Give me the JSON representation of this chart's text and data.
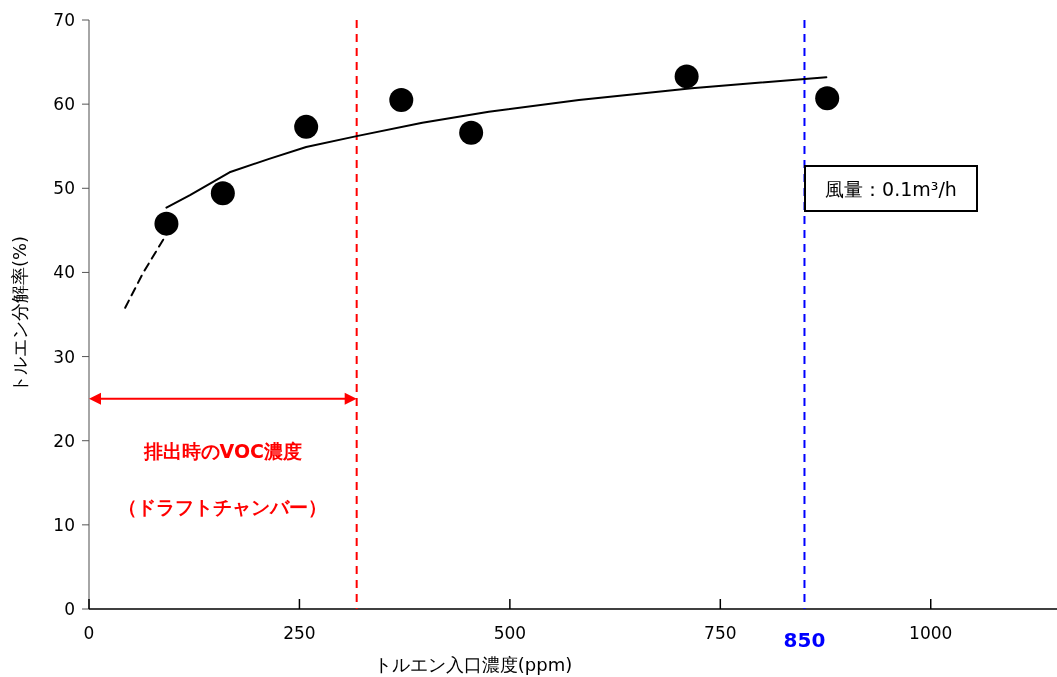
{
  "chart_data": {
    "type": "scatter",
    "xlabel": "トルエン入口濃度(ppm)",
    "ylabel": "トルエン分解率(%)",
    "xlim": [
      0,
      1150
    ],
    "ylim": [
      0,
      70
    ],
    "xticks": [
      0,
      250,
      500,
      750,
      1000
    ],
    "yticks": [
      0,
      10,
      20,
      30,
      40,
      50,
      60,
      70
    ],
    "grid": false,
    "series": [
      {
        "marker": "circle",
        "color": "#000000",
        "x": [
          92,
          159,
          258,
          371,
          454,
          710,
          877
        ],
        "values": [
          45.8,
          49.4,
          57.3,
          60.5,
          56.6,
          63.3,
          60.7
        ]
      },
      {
        "type": "line",
        "line_style": "dashed",
        "color": "#000000",
        "x": [
          43,
          64,
          90
        ],
        "values": [
          35.8,
          39.9,
          44.2
        ]
      },
      {
        "type": "line",
        "line_style": "solid",
        "color": "#000000",
        "x": [
          92,
          120,
          167,
          214,
          258,
          318,
          396,
          475,
          582,
          716,
          876
        ],
        "values": [
          47.7,
          49.2,
          51.9,
          53.5,
          54.9,
          56.2,
          57.8,
          59.1,
          60.5,
          61.9,
          63.2
        ]
      }
    ],
    "ref_lines": [
      {
        "axis": "x",
        "value": 318,
        "label": null,
        "color": "#ff0000",
        "line_style": "dashed"
      },
      {
        "axis": "x",
        "value": 850,
        "label": "850",
        "color": "#0000ff",
        "line_style": "dashed"
      }
    ],
    "annotations": [
      "排出時のVOC濃度",
      "（ドラフトチャンバー）",
      "風量：0.1m³/h"
    ]
  }
}
